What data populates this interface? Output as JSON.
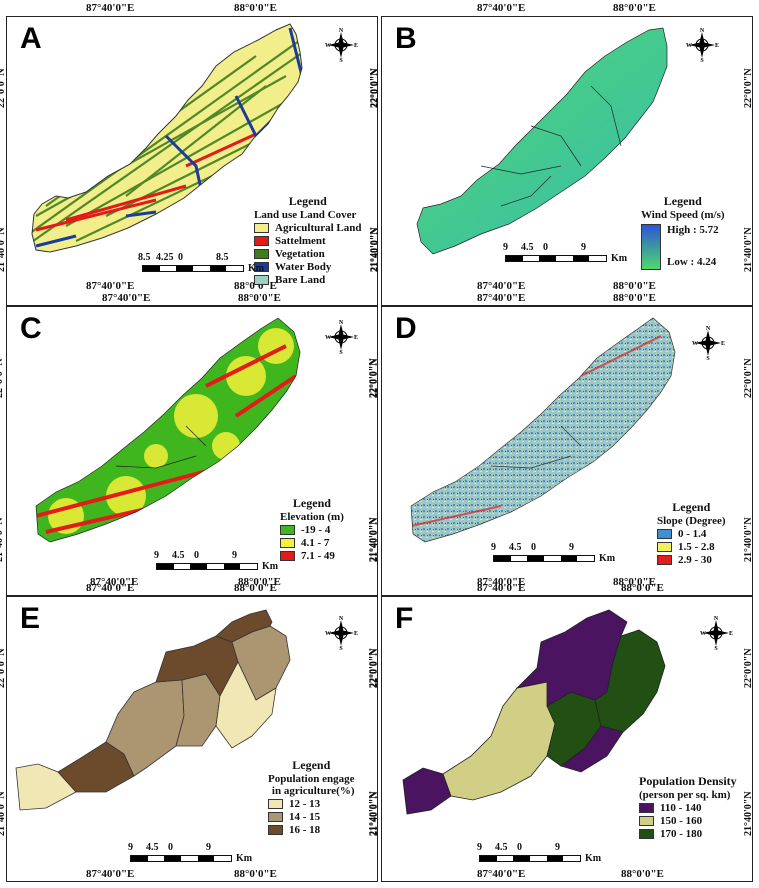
{
  "coords": {
    "lon1": "87°40'0\"E",
    "lon2": "88°0'0\"E",
    "lat1": "22°0'0\"N",
    "lat2": "21°40'0\"N"
  },
  "north": {
    "n": "N",
    "s": "S",
    "e": "E",
    "w": "W"
  },
  "colors": {
    "agri": "#f2ee8c",
    "settle": "#e21a1a",
    "veg": "#3f7d1c",
    "water": "#1b3c9e",
    "bare": "#9dcfc4",
    "windHigh": "#2a56d8",
    "windLow": "#4fd96a",
    "elevLow": "#3fb61e",
    "elevMid": "#f5f03a",
    "elevHigh": "#e41b1b",
    "slopeLow": "#3f8fd1",
    "slopeMid": "#f2f05c",
    "slopeHigh": "#e11e1e",
    "popA": "#f1e7b4",
    "popB": "#ac9571",
    "popC": "#6c4a2c",
    "densA": "#4a1461",
    "densB": "#d1ce86",
    "densC": "#214f14"
  },
  "panels": [
    {
      "label": "A",
      "legend": {
        "title": "Legend",
        "subtitle": "Land use Land Cover",
        "items": [
          {
            "label": "Agricultural Land",
            "color": "#f2ee8c"
          },
          {
            "label": "Sattelment",
            "color": "#e21a1a"
          },
          {
            "label": "Vegetation",
            "color": "#3f7d1c"
          },
          {
            "label": "Water Body",
            "color": "#1b3c9e"
          },
          {
            "label": "Bare Land",
            "color": "#9dcfc4"
          }
        ]
      },
      "scale": {
        "ticks": [
          "8.5",
          "4.25",
          "0",
          "8.5"
        ],
        "unit": "Km"
      }
    },
    {
      "label": "B",
      "legend": {
        "title": "Legend",
        "subtitle": "Wind Speed (m/s)",
        "high": "High : 5.72",
        "low": "Low : 4.24"
      },
      "scale": {
        "ticks": [
          "9",
          "4.5",
          "0",
          "9"
        ],
        "unit": "Km"
      }
    },
    {
      "label": "C",
      "legend": {
        "title": "Legend",
        "subtitle": "Elevation (m)",
        "items": [
          {
            "label": "-19 - 4",
            "color": "#3fb61e"
          },
          {
            "label": "4.1 - 7",
            "color": "#f5f03a"
          },
          {
            "label": "7.1 - 49",
            "color": "#e41b1b"
          }
        ]
      },
      "scale": {
        "ticks": [
          "9",
          "4.5",
          "0",
          "9"
        ],
        "unit": "Km"
      }
    },
    {
      "label": "D",
      "legend": {
        "title": "Legend",
        "subtitle": "Slope (Degree)",
        "items": [
          {
            "label": "0 - 1.4",
            "color": "#3f8fd1"
          },
          {
            "label": "1.5 - 2.8",
            "color": "#f2f05c"
          },
          {
            "label": "2.9 - 30",
            "color": "#e11e1e"
          }
        ]
      },
      "scale": {
        "ticks": [
          "9",
          "4.5",
          "0",
          "9"
        ],
        "unit": "Km"
      }
    },
    {
      "label": "E",
      "legend": {
        "title": "Legend",
        "subtitle": "Population engage",
        "subtitle2": "in agriculture(%)",
        "items": [
          {
            "label": "12 - 13",
            "color": "#f1e7b4"
          },
          {
            "label": "14 - 15",
            "color": "#ac9571"
          },
          {
            "label": "16 - 18",
            "color": "#6c4a2c"
          }
        ]
      },
      "scale": {
        "ticks": [
          "9",
          "4.5",
          "0",
          "9"
        ],
        "unit": "Km"
      }
    },
    {
      "label": "F",
      "legend": {
        "title": "Population Density",
        "subtitle": "(person per sq. km)",
        "items": [
          {
            "label": "110 - 140",
            "color": "#4a1461"
          },
          {
            "label": "150 - 160",
            "color": "#d1ce86"
          },
          {
            "label": "170 - 180",
            "color": "#214f14"
          }
        ]
      },
      "scale": {
        "ticks": [
          "9",
          "4.5",
          "0",
          "9"
        ],
        "unit": "Km"
      }
    }
  ]
}
